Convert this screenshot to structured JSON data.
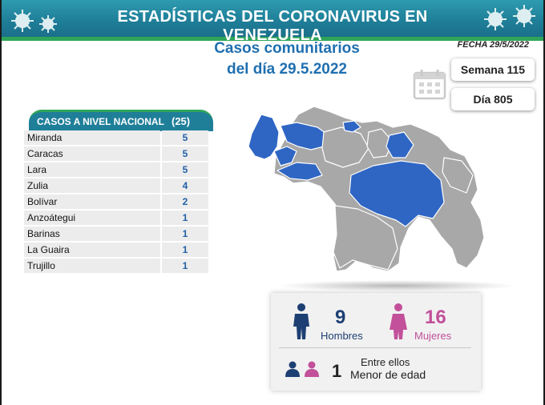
{
  "header": {
    "title": "ESTADÍSTICAS DEL CORONAVIRUS EN VENEZUELA",
    "fecha": "FECHA 29/5/2022",
    "subtitle_line1": "Casos comunitarios",
    "subtitle_line2": "del día 29.5.2022"
  },
  "badges": {
    "semana": "Semana 115",
    "dia": "Día 805"
  },
  "table": {
    "title": "CASOS A NIVEL NACIONAL",
    "total": "(25)",
    "rows": [
      {
        "state": "Miranda",
        "cases": "5"
      },
      {
        "state": "Caracas",
        "cases": "5"
      },
      {
        "state": "Lara",
        "cases": "5"
      },
      {
        "state": "Zulia",
        "cases": "4"
      },
      {
        "state": "Bolívar",
        "cases": "2"
      },
      {
        "state": "Anzoátegui",
        "cases": "1"
      },
      {
        "state": "Barinas",
        "cases": "1"
      },
      {
        "state": "La Guaira",
        "cases": "1"
      },
      {
        "state": "Trujillo",
        "cases": "1"
      }
    ]
  },
  "stats": {
    "men_count": "9",
    "men_label": "Hombres",
    "women_count": "16",
    "women_label": "Mujeres",
    "minors_text": "Entre ellos",
    "minors_count": "1",
    "minors_label": "Menor de edad"
  },
  "colors": {
    "banner": "#1f7f99",
    "accent_green": "#2fa55a",
    "title_blue": "#1f6fb0",
    "map_highlight": "#2f66c4",
    "map_base": "#a8a8a8",
    "men": "#1d3f73",
    "women": "#c2509a"
  },
  "icons": [
    "virus-icon",
    "calendar-icon",
    "man-icon",
    "woman-icon",
    "minors-icon"
  ]
}
